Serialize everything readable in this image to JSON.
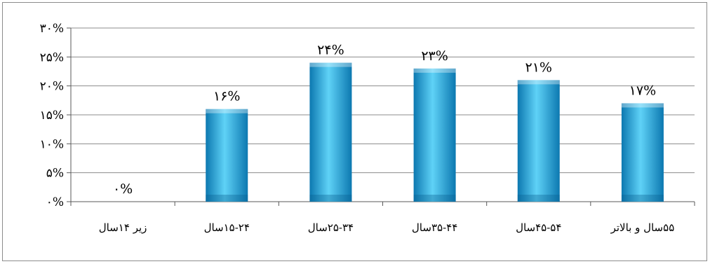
{
  "chart_data": {
    "type": "bar",
    "categories": [
      "زیر ۱۴سال",
      "۱۵-۲۴سال",
      "۲۵-۳۴سال",
      "۳۵-۴۴سال",
      "۴۵-۵۴سال",
      "۵۵سال و بالاتر"
    ],
    "values": [
      0,
      16,
      24,
      23,
      21,
      17
    ],
    "data_labels": [
      "۰%",
      "۱۶%",
      "۲۴%",
      "۲۳%",
      "۲۱%",
      "۱۷%"
    ],
    "y_tick_labels": [
      "۰%",
      "۵%",
      "۱۰%",
      "۱۵%",
      "۲۰%",
      "۲۵%",
      "۳۰%"
    ],
    "y_ticks": [
      0,
      5,
      10,
      15,
      20,
      25,
      30
    ],
    "ylim": [
      0,
      30
    ],
    "title": "",
    "xlabel": "",
    "ylabel": "",
    "grid": true,
    "legend": "none",
    "bar_color": "#1ba8e0",
    "bar_color_light": "#5fd2f7",
    "bar_color_dark": "#0c78b0",
    "gridline_color": "#8c8c8c"
  }
}
